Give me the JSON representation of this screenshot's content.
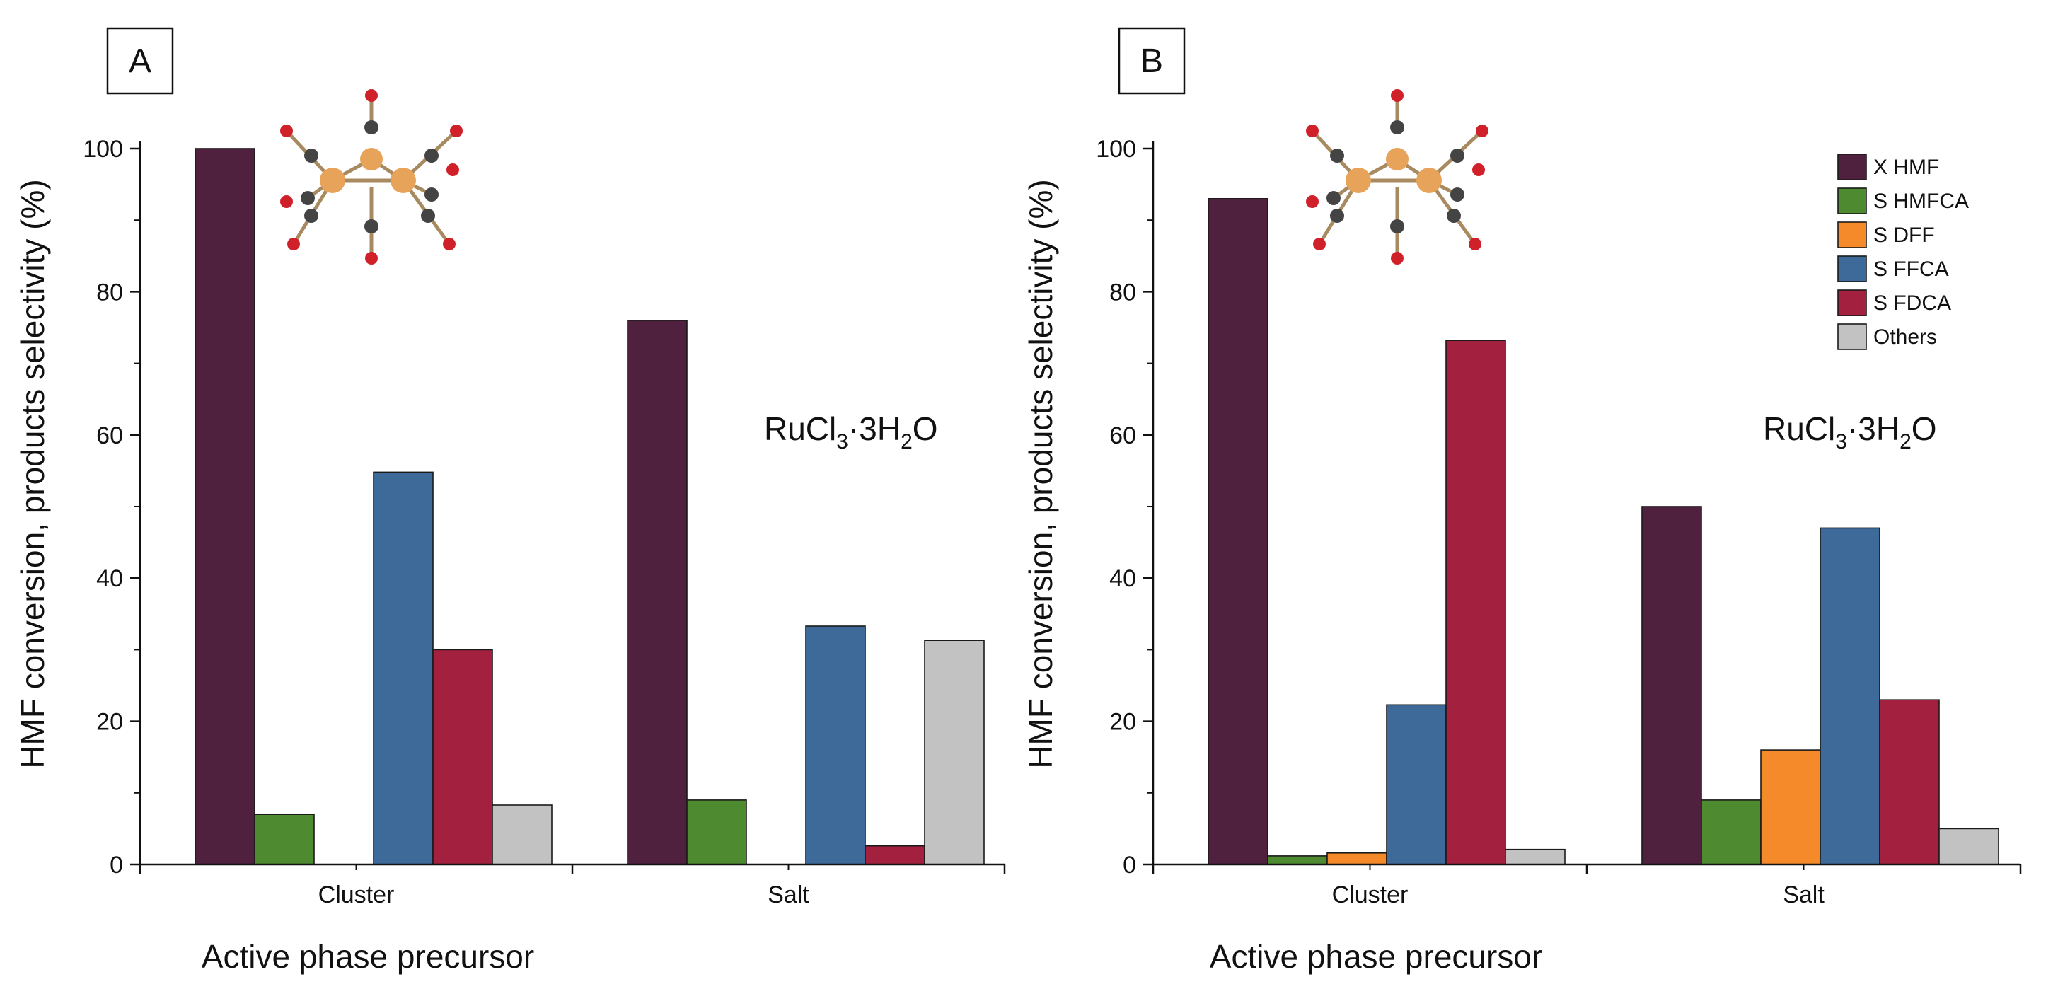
{
  "chart_data": [
    {
      "type": "bar",
      "panel_label": "A",
      "categories": [
        "Cluster",
        "Salt"
      ],
      "series": [
        {
          "name": "X HMF",
          "values": [
            100,
            76
          ],
          "color": "#50203f"
        },
        {
          "name": "S HMFCA",
          "values": [
            7,
            9
          ],
          "color": "#4e8a2f"
        },
        {
          "name": "S DFF",
          "values": [
            0,
            0
          ],
          "color": "#f58a2a"
        },
        {
          "name": "S FFCA",
          "values": [
            54.8,
            33.3
          ],
          "color": "#3e6a9a"
        },
        {
          "name": "S FDCA",
          "values": [
            30,
            2.6
          ],
          "color": "#a3203e"
        },
        {
          "name": "Others",
          "values": [
            8.3,
            31.3
          ],
          "color": "#c2c2c2"
        }
      ],
      "xlabel": "Active phase precursor",
      "ylabel": "HMF conversion, products selectivity (%)",
      "ylim": [
        0,
        100
      ],
      "yticks": [
        "0",
        "20",
        "40",
        "60",
        "80",
        "100"
      ],
      "annotation": {
        "base": "RuCl",
        "sub1": "3",
        "middle": "·3H",
        "sub2": "2",
        "end": "O"
      },
      "legend": false
    },
    {
      "type": "bar",
      "panel_label": "B",
      "categories": [
        "Cluster",
        "Salt"
      ],
      "series": [
        {
          "name": "X HMF",
          "values": [
            93,
            50
          ],
          "color": "#50203f"
        },
        {
          "name": "S HMFCA",
          "values": [
            1.2,
            9
          ],
          "color": "#4e8a2f"
        },
        {
          "name": "S DFF",
          "values": [
            1.6,
            16
          ],
          "color": "#f58a2a"
        },
        {
          "name": "S FFCA",
          "values": [
            22.3,
            47
          ],
          "color": "#3e6a9a"
        },
        {
          "name": "S FDCA",
          "values": [
            73.2,
            23
          ],
          "color": "#a3203e"
        },
        {
          "name": "Others",
          "values": [
            2.1,
            5
          ],
          "color": "#c2c2c2"
        }
      ],
      "xlabel": "Active phase precursor",
      "ylabel": "HMF conversion, products selectivity (%)",
      "ylim": [
        0,
        100
      ],
      "yticks": [
        "0",
        "20",
        "40",
        "60",
        "80",
        "100"
      ],
      "annotation": {
        "base": "RuCl",
        "sub1": "3",
        "middle": "·3H",
        "sub2": "2",
        "end": "O"
      },
      "legend": true,
      "legend_position": "top-right"
    }
  ]
}
